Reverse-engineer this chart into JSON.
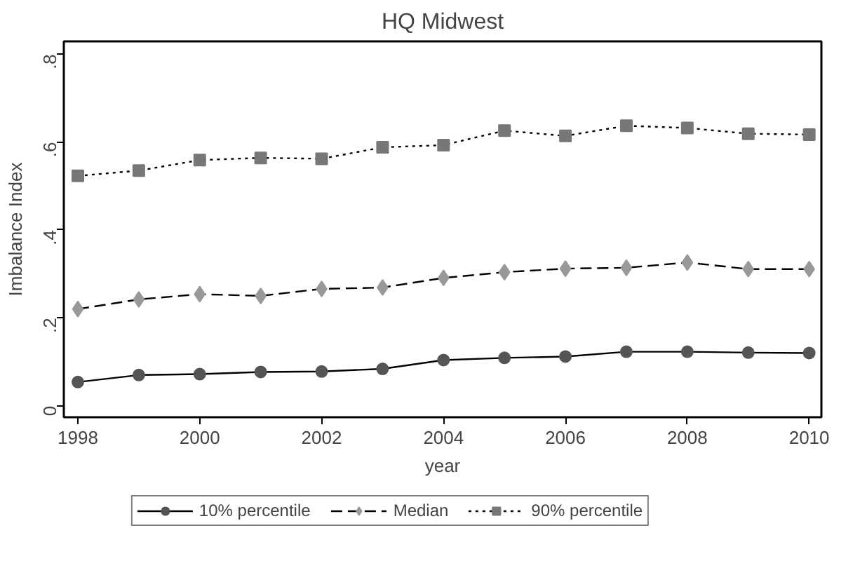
{
  "chart_data": {
    "type": "line",
    "title": "HQ Midwest",
    "xlabel": "year",
    "ylabel": "Imbalance Index",
    "x": [
      1998,
      1999,
      2000,
      2001,
      2002,
      2003,
      2004,
      2005,
      2006,
      2007,
      2008,
      2009,
      2010
    ],
    "series": [
      {
        "name": "10% percentile",
        "color": "#555555",
        "marker": "circle",
        "line_style": "solid",
        "values": [
          0.054,
          0.07,
          0.072,
          0.077,
          0.078,
          0.084,
          0.104,
          0.109,
          0.112,
          0.123,
          0.123,
          0.121,
          0.12
        ]
      },
      {
        "name": "Median",
        "color": "#999999",
        "marker": "diamond",
        "line_style": "dashed",
        "values": [
          0.22,
          0.242,
          0.254,
          0.25,
          0.266,
          0.269,
          0.291,
          0.304,
          0.312,
          0.314,
          0.326,
          0.311,
          0.311
        ]
      },
      {
        "name": "90% percentile",
        "color": "#777777",
        "marker": "square",
        "line_style": "dotted",
        "values": [
          0.523,
          0.535,
          0.559,
          0.564,
          0.562,
          0.588,
          0.593,
          0.626,
          0.614,
          0.637,
          0.632,
          0.619,
          0.617
        ]
      }
    ],
    "xlim": [
      1997.77,
      2010.2
    ],
    "xticks": [
      1998,
      2000,
      2002,
      2004,
      2006,
      2008,
      2010
    ],
    "ylim": [
      -0.026,
      0.829
    ],
    "yticks": [
      0,
      {
        "value": 0.2,
        "label": ".2"
      },
      {
        "value": 0.4,
        "label": ".4"
      },
      {
        "value": 0.6,
        "label": ".6"
      },
      {
        "value": 0.8,
        "label": ".8"
      }
    ],
    "grid": false,
    "legend": "bottom"
  }
}
